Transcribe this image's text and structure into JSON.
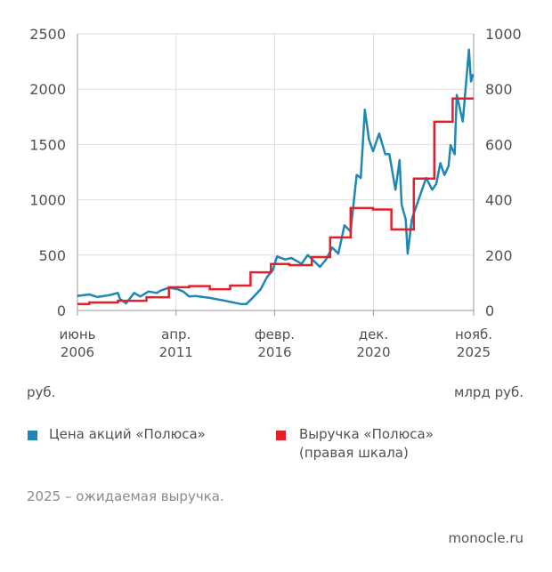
{
  "chart_data": {
    "type": "line",
    "title": "",
    "xlabel": "",
    "ylabel_left": "руб.",
    "ylabel_right": "млрд руб.",
    "ylim_left": [
      0,
      2500
    ],
    "ylim_right": [
      0,
      1000
    ],
    "xlim": [
      2006.42,
      2025.83
    ],
    "left_ticks": [
      "0",
      "500",
      "1000",
      "1500",
      "2000",
      "2500"
    ],
    "left_tick_values": [
      0,
      500,
      1000,
      1500,
      2000,
      2500
    ],
    "right_ticks": [
      "0",
      "200",
      "400",
      "600",
      "800",
      "1000"
    ],
    "right_tick_values": [
      0,
      200,
      400,
      600,
      800,
      1000
    ],
    "x_ticks": [
      {
        "month": "июнь",
        "year": "2006",
        "value": 2006.42
      },
      {
        "month": "апр.",
        "year": "2011",
        "value": 2011.25
      },
      {
        "month": "февр.",
        "year": "2016",
        "value": 2016.08
      },
      {
        "month": "дек.",
        "year": "2020",
        "value": 2020.92
      },
      {
        "month": "нояб.",
        "year": "2025",
        "value": 2025.83
      }
    ],
    "grid": true,
    "legend_placement": "bottom",
    "series": [
      {
        "name": "Цена акций «Полюса»",
        "axis": "left",
        "color": "#1f87b5",
        "x": [
          2006.4,
          2007.0,
          2007.4,
          2008.0,
          2008.4,
          2008.5,
          2008.8,
          2009.2,
          2009.5,
          2009.9,
          2010.3,
          2010.5,
          2010.9,
          2011.3,
          2011.6,
          2011.9,
          2012.2,
          2012.9,
          2013.7,
          2014.4,
          2014.7,
          2015.0,
          2015.4,
          2015.7,
          2016.0,
          2016.2,
          2016.6,
          2016.9,
          2017.4,
          2017.7,
          2018.0,
          2018.3,
          2018.6,
          2018.9,
          2019.2,
          2019.5,
          2019.8,
          2020.1,
          2020.3,
          2020.5,
          2020.7,
          2020.9,
          2021.2,
          2021.5,
          2021.7,
          2022.0,
          2022.2,
          2022.3,
          2022.5,
          2022.6,
          2022.8,
          2023.0,
          2023.3,
          2023.5,
          2023.8,
          2024.0,
          2024.2,
          2024.4,
          2024.6,
          2024.7,
          2024.9,
          2025.0,
          2025.3,
          2025.6,
          2025.7,
          2025.8
        ],
        "values": [
          131,
          145,
          121,
          139,
          158,
          105,
          64,
          158,
          126,
          171,
          158,
          179,
          206,
          193,
          171,
          126,
          131,
          113,
          86,
          59,
          59,
          113,
          193,
          300,
          367,
          488,
          461,
          474,
          421,
          501,
          448,
          394,
          461,
          568,
          514,
          769,
          715,
          1224,
          1198,
          1814,
          1546,
          1439,
          1600,
          1412,
          1412,
          1091,
          1359,
          957,
          822,
          514,
          822,
          930,
          1091,
          1198,
          1091,
          1144,
          1332,
          1224,
          1305,
          1493,
          1412,
          1948,
          1707,
          2357,
          2069,
          2136
        ]
      },
      {
        "name": "Выручка «Полюса»",
        "name_note": "(правая шкала)",
        "axis": "right",
        "step": true,
        "color": "#e3202a",
        "x": [
          2006.42,
          2007.0,
          2008.4,
          2009.8,
          2010.9,
          2011.9,
          2012.9,
          2013.9,
          2014.9,
          2015.9,
          2016.8,
          2017.9,
          2018.8,
          2019.8,
          2020.9,
          2021.8,
          2022.9,
          2023.9,
          2024.8,
          2025.83
        ],
        "values": [
          23,
          29,
          35,
          48,
          84,
          88,
          77,
          90,
          138,
          168,
          164,
          193,
          264,
          370,
          365,
          293,
          477,
          682,
          766,
          766
        ]
      }
    ]
  },
  "legend": {
    "price": "Цена акций «Полюса»",
    "revenue": "Выручка «Полюса»",
    "revenue_note": "(правая шкала)"
  },
  "footnote": "2025 – ожидаемая выручка.",
  "source": "monocle.ru"
}
